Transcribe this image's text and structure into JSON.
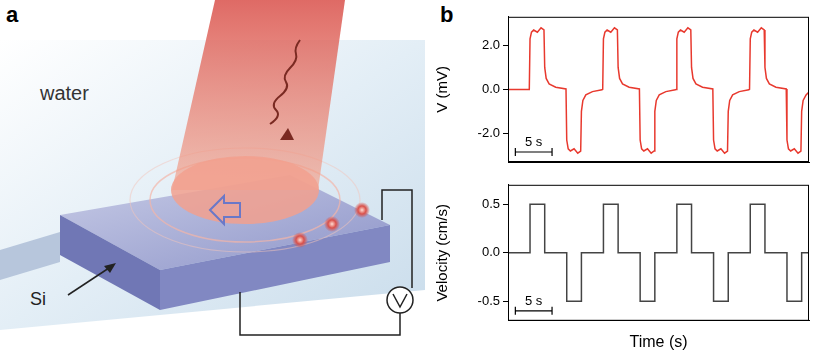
{
  "panel_labels": [
    "a",
    "b"
  ],
  "diagram": {
    "medium_label": "water",
    "substrate_label": "Si"
  },
  "chart_data": [
    {
      "type": "line",
      "y_label": "V (mV)",
      "color": "#e8392e",
      "grid": false,
      "tick_labels": "y",
      "xlim": [
        0,
        41
      ],
      "ylim": [
        -3.3,
        3.3
      ],
      "yticks": [
        {
          "value": -2,
          "label": "-2.0"
        },
        {
          "value": 0,
          "label": "0.0"
        },
        {
          "value": 2,
          "label": "2.0"
        }
      ],
      "scale_bar": {
        "length": 5,
        "label": "5 s"
      },
      "x": [
        0,
        2.9,
        3.0,
        3.2,
        3.5,
        4.0,
        4.5,
        4.9,
        5.0,
        5.2,
        5.6,
        6.5,
        7.9,
        8.0,
        8.2,
        8.5,
        9.0,
        9.5,
        9.9,
        10.0,
        10.2,
        10.6,
        11.5,
        12.8,
        12.9,
        13.0,
        13.2,
        13.5,
        14.0,
        14.5,
        14.9,
        15.0,
        15.2,
        15.6,
        16.5,
        17.9,
        18.0,
        18.2,
        18.5,
        19.0,
        19.5,
        19.9,
        20.0,
        20.2,
        20.6,
        21.5,
        22.8,
        22.9,
        23.0,
        23.2,
        23.5,
        24.0,
        24.5,
        24.9,
        25.0,
        25.2,
        25.6,
        26.5,
        27.9,
        28.0,
        28.2,
        28.5,
        29.0,
        29.5,
        29.9,
        30.0,
        30.2,
        30.6,
        31.5,
        32.8,
        32.9,
        33.0,
        33.2,
        33.5,
        34.0,
        34.5,
        34.9,
        35.0,
        35.2,
        35.6,
        36.5,
        37.9,
        38.0,
        38.2,
        38.5,
        39.0,
        39.5,
        39.9,
        40.0,
        40.2,
        40.6,
        41.0
      ],
      "values": [
        0,
        0.0,
        2.3,
        2.6,
        2.7,
        2.6,
        2.8,
        2.7,
        1.0,
        0.5,
        0.25,
        0.1,
        0.02,
        -2.3,
        -2.7,
        -2.8,
        -2.7,
        -2.9,
        -2.8,
        -1.0,
        -0.5,
        -0.25,
        -0.1,
        -0.02,
        0.0,
        2.3,
        2.6,
        2.7,
        2.6,
        2.8,
        2.7,
        1.0,
        0.5,
        0.25,
        0.1,
        0.02,
        -2.3,
        -2.7,
        -2.8,
        -2.7,
        -2.9,
        -2.8,
        -1.0,
        -0.5,
        -0.25,
        -0.1,
        -0.02,
        0.0,
        2.3,
        2.6,
        2.7,
        2.6,
        2.8,
        2.7,
        1.0,
        0.5,
        0.25,
        0.1,
        0.02,
        -2.3,
        -2.7,
        -2.8,
        -2.7,
        -2.9,
        -2.8,
        -1.0,
        -0.5,
        -0.25,
        -0.1,
        -0.02,
        0.0,
        2.3,
        2.6,
        2.7,
        2.6,
        2.8,
        2.7,
        1.0,
        0.5,
        0.25,
        0.1,
        0.02,
        -2.3,
        -2.7,
        -2.8,
        -2.7,
        -2.9,
        -2.8,
        -1.0,
        -0.5,
        -0.25,
        -0.12
      ]
    },
    {
      "type": "line",
      "y_label": "Velocity (cm/s)",
      "x_label": "Time (s)",
      "color": "#444444",
      "grid": false,
      "tick_labels": "y",
      "xlim": [
        0,
        41
      ],
      "ylim": [
        -0.7,
        0.7
      ],
      "yticks": [
        {
          "value": -0.5,
          "label": "-0.5"
        },
        {
          "value": 0,
          "label": "0.0"
        },
        {
          "value": 0.5,
          "label": "0.5"
        }
      ],
      "scale_bar": {
        "length": 5,
        "label": "5 s"
      },
      "x": [
        0,
        3,
        3,
        5,
        5,
        8,
        8,
        10,
        10,
        13,
        13,
        15,
        15,
        18,
        18,
        20,
        20,
        23,
        23,
        25,
        25,
        28,
        28,
        30,
        30,
        33,
        33,
        35,
        35,
        38,
        38,
        40,
        40,
        41
      ],
      "values": [
        0,
        0,
        0.5,
        0.5,
        0,
        0,
        -0.5,
        -0.5,
        0,
        0,
        0.5,
        0.5,
        0,
        0,
        -0.5,
        -0.5,
        0,
        0,
        0.5,
        0.5,
        0,
        0,
        -0.5,
        -0.5,
        0,
        0,
        0.5,
        0.5,
        0,
        0,
        -0.5,
        -0.5,
        0,
        0
      ]
    }
  ]
}
